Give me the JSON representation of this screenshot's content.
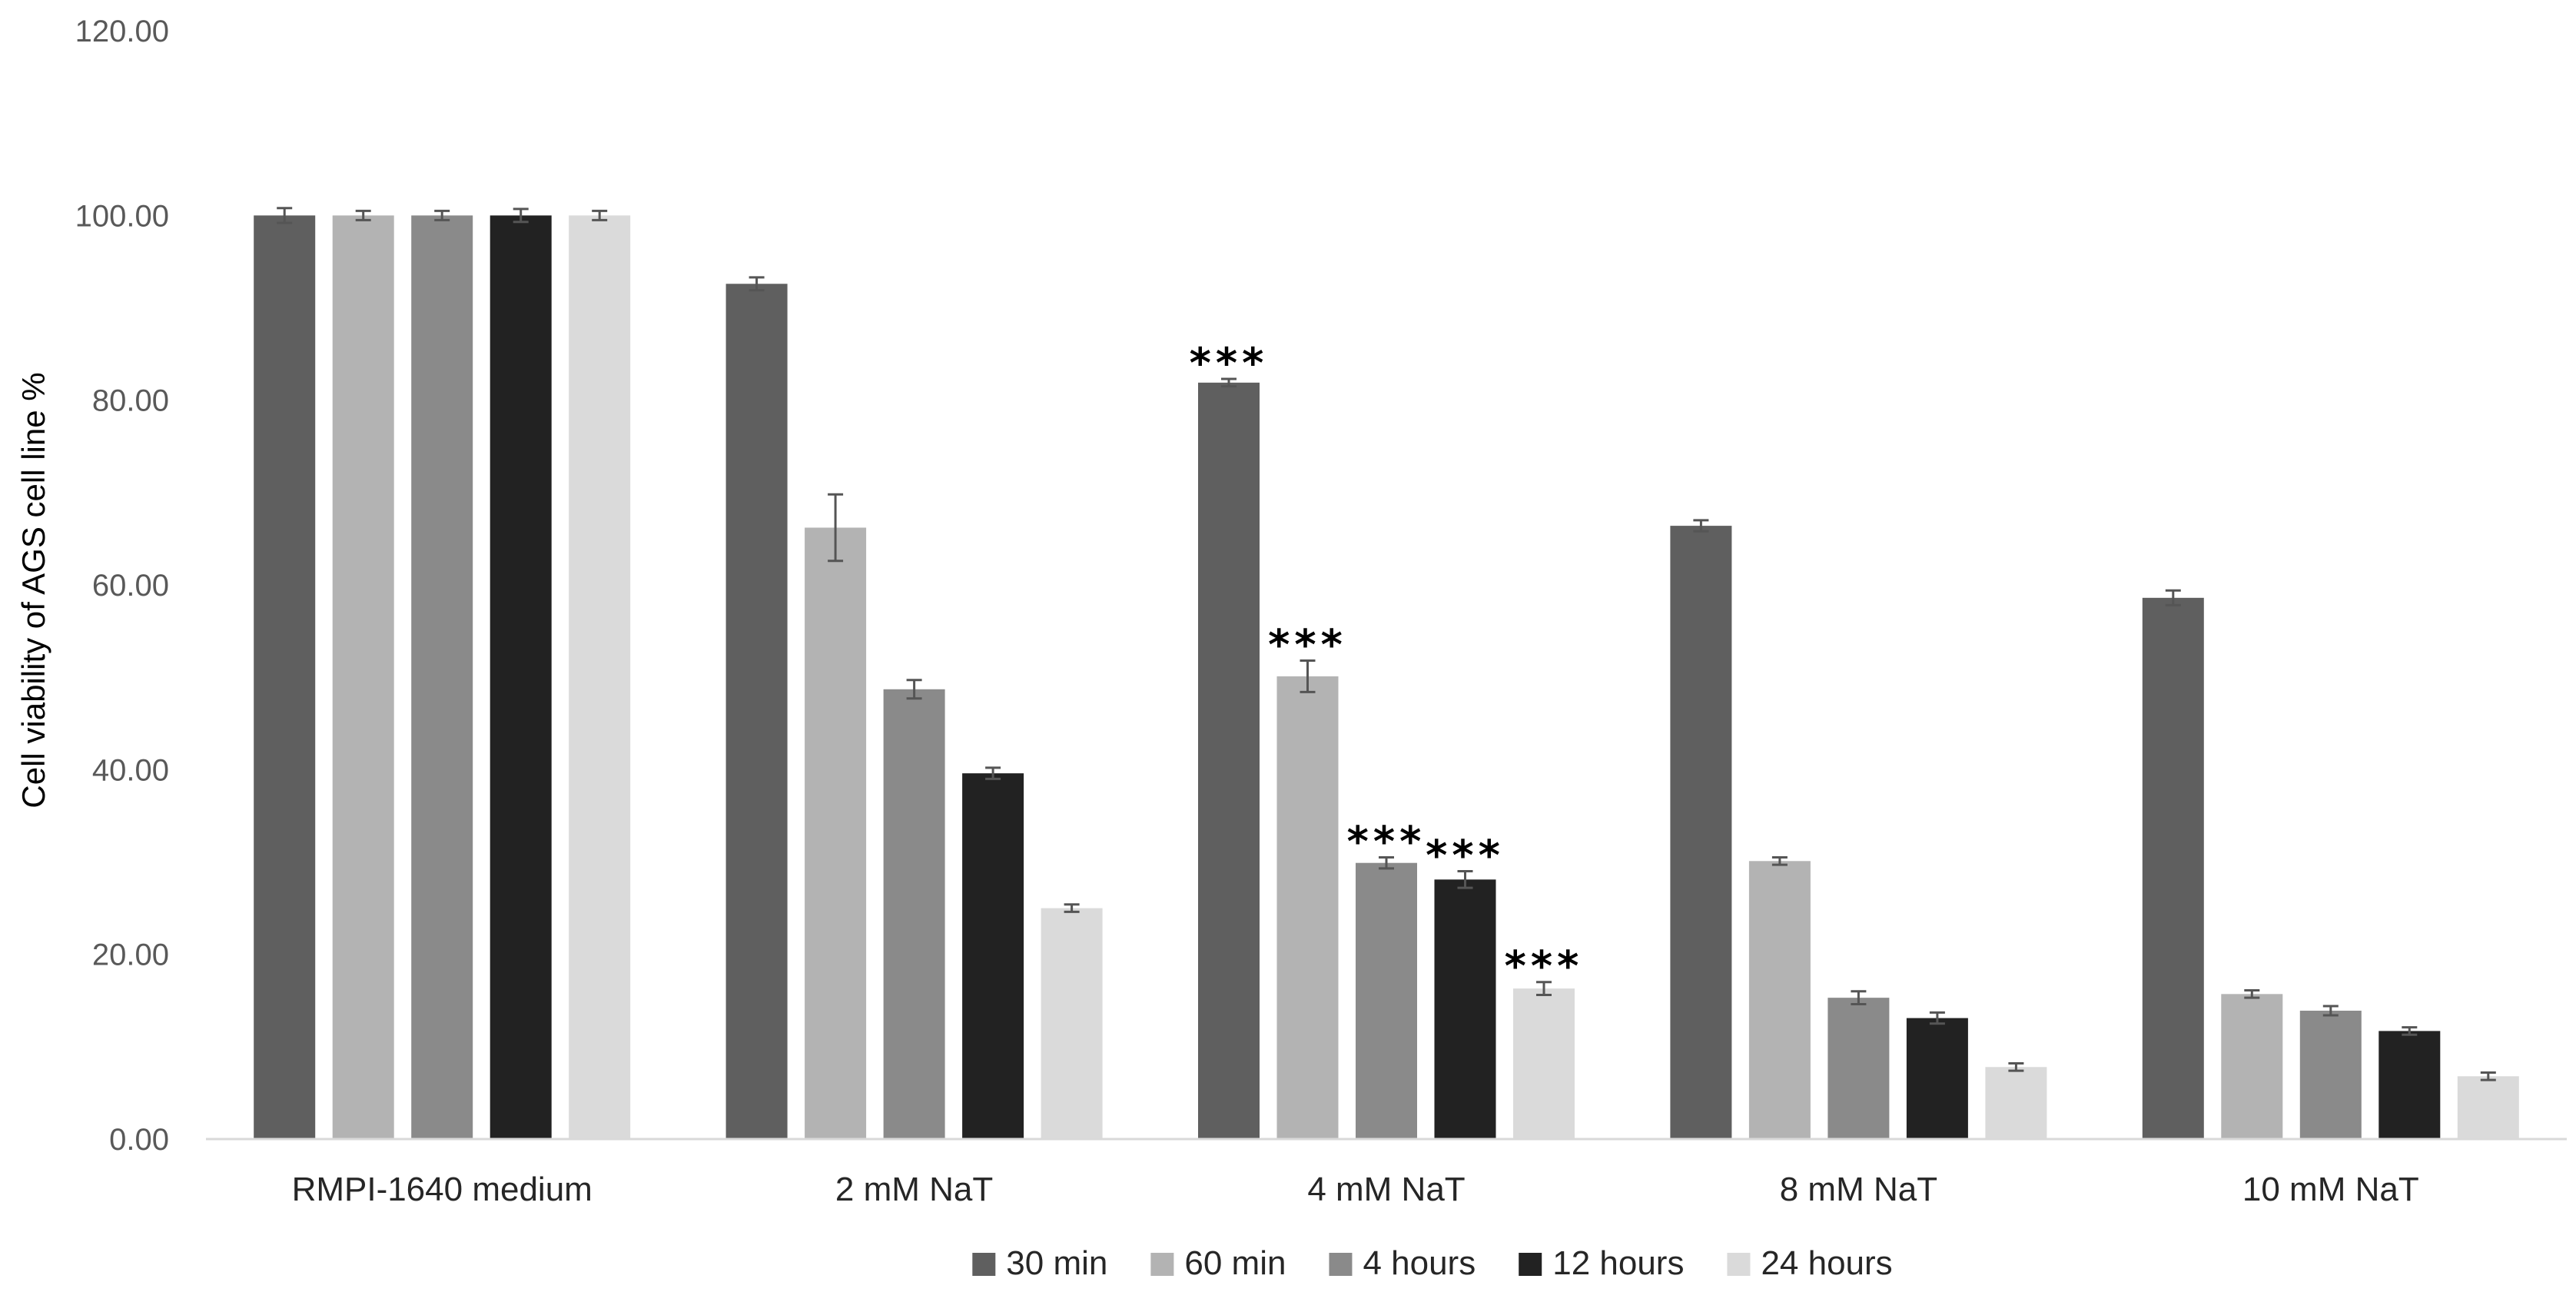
{
  "chart_data": {
    "type": "bar",
    "title": "",
    "xlabel": "",
    "ylabel": "Cell viability of AGS cell line %",
    "ylim": [
      0,
      120
    ],
    "y_ticks": [
      "0.00",
      "20.00",
      "40.00",
      "60.00",
      "80.00",
      "100.00",
      "120.00"
    ],
    "y_tick_values": [
      0,
      20,
      40,
      60,
      80,
      100,
      120
    ],
    "grid": false,
    "legend_position": "bottom",
    "categories": [
      "RMPI-1640 medium",
      "2 mM NaT",
      "4 mM NaT",
      "8 mM NaT",
      "10 mM NaT"
    ],
    "series": [
      {
        "name": "30 min",
        "color": "#5f5f5f",
        "values": [
          100,
          92.6,
          81.9,
          66.4,
          58.6
        ],
        "errors": [
          0.8,
          0.7,
          0.4,
          0.6,
          0.8
        ]
      },
      {
        "name": "60 min",
        "color": "#b3b3b3",
        "values": [
          100,
          66.2,
          50.1,
          30.1,
          15.7
        ],
        "errors": [
          0.5,
          3.6,
          1.7,
          0.4,
          0.4
        ]
      },
      {
        "name": "4 hours",
        "color": "#8a8a8a",
        "values": [
          100,
          48.7,
          29.9,
          15.3,
          13.9
        ],
        "errors": [
          0.5,
          1.0,
          0.6,
          0.7,
          0.5
        ]
      },
      {
        "name": "12 hours",
        "color": "#222222",
        "values": [
          100,
          39.6,
          28.1,
          13.1,
          11.7
        ],
        "errors": [
          0.7,
          0.6,
          0.9,
          0.6,
          0.4
        ]
      },
      {
        "name": "24 hours",
        "color": "#dadada",
        "values": [
          100,
          25.0,
          16.3,
          7.8,
          6.8
        ],
        "errors": [
          0.5,
          0.4,
          0.7,
          0.4,
          0.4
        ]
      }
    ],
    "annotations": [
      {
        "category": "4 mM NaT",
        "series": "30 min",
        "text": "***"
      },
      {
        "category": "4 mM NaT",
        "series": "60 min",
        "text": "***"
      },
      {
        "category": "4 mM NaT",
        "series": "4 hours",
        "text": "***"
      },
      {
        "category": "4 mM NaT",
        "series": "12 hours",
        "text": "***"
      },
      {
        "category": "4 mM NaT",
        "series": "24 hours",
        "text": "***"
      }
    ]
  }
}
